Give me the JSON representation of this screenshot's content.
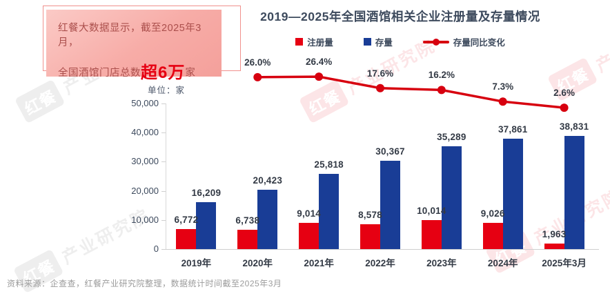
{
  "callout": {
    "line1": "红餐大数据显示，截至2025年3月，",
    "line2_prefix": "全国酒馆门店总数",
    "line2_highlight": "超6万",
    "line2_suffix": "家"
  },
  "watermark": {
    "logo": "红餐",
    "text": "产业研究院"
  },
  "chart_data": {
    "type": "bar",
    "title": "2019—2025年全国酒馆相关企业注册量及存量情况",
    "unit_label": "单位：家",
    "categories": [
      "2019年",
      "2020年",
      "2021年",
      "2022年",
      "2023年",
      "2024年",
      "2025年3月"
    ],
    "series": [
      {
        "name": "注册量",
        "type": "bar",
        "color": "#e60012",
        "values": [
          6772,
          6738,
          9014,
          8578,
          10014,
          9026,
          1963
        ],
        "labels": [
          "6,772",
          "6,738",
          "9,014",
          "8,578",
          "10,014",
          "9,026",
          "1,963"
        ]
      },
      {
        "name": "存量",
        "type": "bar",
        "color": "#193d96",
        "values": [
          16209,
          20423,
          25818,
          30367,
          35289,
          37861,
          38831
        ],
        "labels": [
          "16,209",
          "20,423",
          "25,818",
          "30,367",
          "35,289",
          "37,861",
          "38,831"
        ]
      },
      {
        "name": "存量同比变化",
        "type": "line",
        "color": "#d7000f",
        "values": [
          null,
          26.0,
          26.4,
          17.6,
          16.2,
          7.3,
          2.6
        ],
        "labels": [
          "",
          "26.0%",
          "26.4%",
          "17.6%",
          "16.2%",
          "7.3%",
          "2.6%"
        ]
      }
    ],
    "ylim": [
      0,
      50000
    ],
    "yticks": [
      "0",
      "10,000",
      "20,000",
      "30,000",
      "40,000",
      "50,000"
    ],
    "legend_position": "top",
    "grid": false
  },
  "footer": {
    "source": "资料来源：企查查，红餐产业研究院整理，数据统计时间截至2025年3月"
  }
}
